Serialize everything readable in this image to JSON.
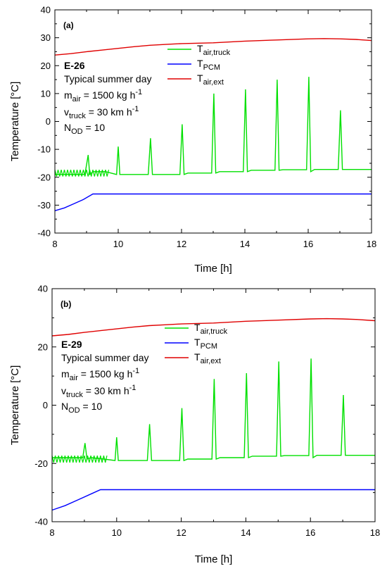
{
  "chart_data": [
    {
      "type": "line",
      "panel_label": "(a)",
      "xlabel": "Time [h]",
      "ylabel": "Temperature [°C]",
      "xlim": [
        8,
        18
      ],
      "ylim": [
        -40,
        40
      ],
      "xticks": [
        "8",
        "10",
        "12",
        "14",
        "16",
        "18"
      ],
      "yticks": [
        "-40",
        "-30",
        "-20",
        "-10",
        "0",
        "10",
        "20",
        "30",
        "40"
      ],
      "legend_position": "top-center",
      "annotation": {
        "case": "E-26",
        "line1": "Typical summer day",
        "mair_main": "m",
        "mair_sub": "air",
        "mair_val": " = 1500 kg h",
        "mair_sup": "-1",
        "vtruck_main": "v",
        "vtruck_sub": "truck",
        "vtruck_val": " = 30 km h",
        "vtruck_sup": "-1",
        "nod_main": "N",
        "nod_sub": "OD",
        "nod_val": " = 10"
      },
      "series": [
        {
          "name_main": "T",
          "name_sub": "air,truck",
          "color": "#00e000",
          "x": [
            8.0,
            8.95,
            9.05,
            9.1,
            9.2,
            9.6,
            9.95,
            10.0,
            10.05,
            10.2,
            10.95,
            11.02,
            11.08,
            11.2,
            11.95,
            12.02,
            12.08,
            12.2,
            12.95,
            13.02,
            13.08,
            13.2,
            13.95,
            14.02,
            14.08,
            14.2,
            14.95,
            15.02,
            15.08,
            15.2,
            15.95,
            16.02,
            16.08,
            16.2,
            16.95,
            17.02,
            17.08,
            17.2,
            18.0
          ],
          "y": [
            -19,
            -19,
            -12,
            -19,
            -18,
            -18,
            -19,
            -9,
            -19,
            -19,
            -19,
            -6,
            -19,
            -19,
            -19,
            -1,
            -19,
            -18.5,
            -18.5,
            10,
            -18.5,
            -18,
            -18,
            11.5,
            -18,
            -17.5,
            -17.5,
            15,
            -17.5,
            -17.3,
            -17.3,
            16,
            -18,
            -17.2,
            -17.2,
            4,
            -17.2,
            -17.2,
            -17.2
          ]
        },
        {
          "name_main": "T",
          "name_sub": "PCM",
          "color": "#0000ff",
          "x": [
            8.0,
            8.3,
            8.6,
            8.9,
            9.2,
            18.0
          ],
          "y": [
            -32,
            -31,
            -29.5,
            -28,
            -26,
            -26
          ]
        },
        {
          "name_main": "T",
          "name_sub": "air,ext",
          "color": "#e00000",
          "x": [
            8.0,
            8.5,
            9.0,
            9.5,
            10.0,
            10.5,
            11.0,
            11.5,
            12.0,
            13.0,
            14.0,
            15.0,
            16.0,
            16.5,
            17.0,
            17.5,
            18.0
          ],
          "y": [
            23.8,
            24.3,
            25.0,
            25.6,
            26.2,
            26.8,
            27.3,
            27.6,
            27.9,
            28.2,
            28.8,
            29.2,
            29.6,
            29.7,
            29.6,
            29.4,
            29.0
          ]
        }
      ]
    },
    {
      "type": "line",
      "panel_label": "(b)",
      "xlabel": "Time [h]",
      "ylabel": "Temperature [°C]",
      "xlim": [
        8,
        18
      ],
      "ylim": [
        -40,
        40
      ],
      "xticks": [
        "8",
        "10",
        "12",
        "14",
        "16",
        "18"
      ],
      "yticks": [
        "-40",
        "-20",
        "0",
        "20",
        "40"
      ],
      "legend_position": "top-center",
      "annotation": {
        "case": "E-29",
        "line1": "Typical summer day",
        "mair_main": "m",
        "mair_sub": "air",
        "mair_val": " = 1500 kg h",
        "mair_sup": "-1",
        "vtruck_main": "v",
        "vtruck_sub": "truck",
        "vtruck_val": " = 30 km h",
        "vtruck_sup": "-1",
        "nod_main": "N",
        "nod_sub": "OD",
        "nod_val": " = 10"
      },
      "series": [
        {
          "name_main": "T",
          "name_sub": "air,truck",
          "color": "#00e000",
          "x": [
            8.0,
            8.95,
            9.02,
            9.08,
            9.2,
            9.6,
            9.95,
            10.0,
            10.05,
            10.2,
            10.95,
            11.02,
            11.08,
            11.2,
            11.95,
            12.02,
            12.08,
            12.2,
            12.95,
            13.02,
            13.08,
            13.2,
            13.95,
            14.02,
            14.08,
            14.2,
            14.95,
            15.02,
            15.08,
            15.2,
            15.95,
            16.02,
            16.08,
            16.2,
            16.95,
            17.02,
            17.08,
            17.2,
            18.0
          ],
          "y": [
            -18,
            -18,
            -13,
            -18.5,
            -18,
            -18.5,
            -19,
            -11,
            -19,
            -19,
            -19,
            -6.5,
            -19,
            -19,
            -19,
            -1,
            -19,
            -18.5,
            -18.5,
            9,
            -18.5,
            -18,
            -18,
            11,
            -18,
            -17.5,
            -17.5,
            15,
            -17.5,
            -17.3,
            -17.3,
            16,
            -18,
            -17.2,
            -17.2,
            3.5,
            -17.2,
            -17.2,
            -17.2
          ]
        },
        {
          "name_main": "T",
          "name_sub": "PCM",
          "color": "#0000ff",
          "x": [
            8.0,
            8.4,
            8.8,
            9.2,
            9.5,
            18.0
          ],
          "y": [
            -36,
            -34.5,
            -32.5,
            -30.5,
            -29,
            -29
          ]
        },
        {
          "name_main": "T",
          "name_sub": "air,ext",
          "color": "#e00000",
          "x": [
            8.0,
            8.5,
            9.0,
            9.5,
            10.0,
            10.5,
            11.0,
            11.5,
            12.0,
            13.0,
            14.0,
            15.0,
            16.0,
            16.5,
            17.0,
            17.5,
            18.0
          ],
          "y": [
            23.8,
            24.3,
            25.0,
            25.6,
            26.2,
            26.8,
            27.3,
            27.6,
            27.9,
            28.2,
            28.8,
            29.2,
            29.6,
            29.7,
            29.6,
            29.4,
            29.0
          ]
        }
      ]
    }
  ]
}
